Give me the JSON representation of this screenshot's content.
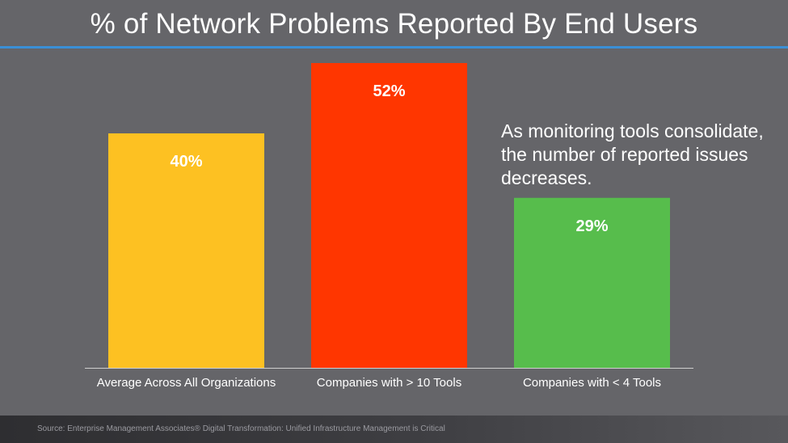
{
  "slide": {
    "title": "% of Network Problems Reported By End Users",
    "annotation": "As monitoring tools consolidate, the number of reported issues decreases.",
    "source": "Source: Enterprise Management Associates® Digital Transformation: Unified Infrastructure Management is Critical"
  },
  "colors": {
    "background": "#656569",
    "title_rule": "#3a8fd6",
    "axis": "#d0d0d0"
  },
  "chart_data": {
    "type": "bar",
    "categories": [
      "Average Across All Organizations",
      "Companies with > 10 Tools",
      "Companies with < 4 Tools"
    ],
    "values": [
      40,
      52,
      29
    ],
    "data_labels": [
      "40%",
      "52%",
      "29%"
    ],
    "colors": [
      "#fdc122",
      "#ff3600",
      "#57bd4c"
    ],
    "value_unit": "%",
    "ylim": [
      0,
      60
    ],
    "grid": false,
    "legend": "none"
  }
}
